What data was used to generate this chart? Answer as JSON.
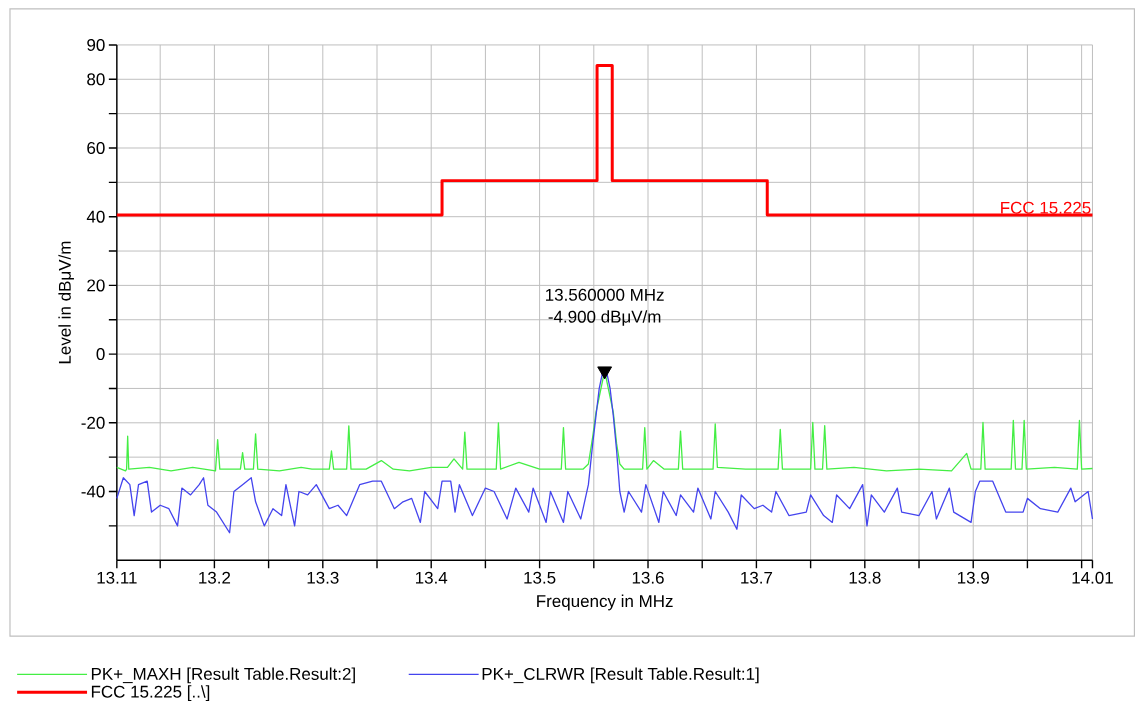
{
  "chart_data": {
    "type": "line",
    "xlabel": "Frequency in MHz",
    "ylabel": "Level in dBμV/m",
    "xlim": [
      13.11,
      14.01
    ],
    "ylim": [
      -60,
      90
    ],
    "xticks": [
      13.11,
      {
        "value": 13.15,
        "label": null
      },
      13.2,
      {
        "value": 13.25,
        "label": null
      },
      13.3,
      {
        "value": 13.35,
        "label": null
      },
      13.4,
      {
        "value": 13.45,
        "label": null
      },
      13.5,
      {
        "value": 13.55,
        "label": null
      },
      13.6,
      {
        "value": 13.65,
        "label": null
      },
      13.7,
      {
        "value": 13.75,
        "label": null
      },
      13.8,
      {
        "value": 13.85,
        "label": null
      },
      13.9,
      {
        "value": 13.95,
        "label": null
      },
      {
        "value": 14.0,
        "label": null
      },
      14.01
    ],
    "yticks": [
      {
        "value": -50,
        "label": null
      },
      -40,
      {
        "value": -30,
        "label": null
      },
      -20,
      {
        "value": -10,
        "label": null
      },
      0,
      {
        "value": 10,
        "label": null
      },
      20,
      {
        "value": 30,
        "label": null
      },
      40,
      {
        "value": 50,
        "label": null
      },
      60,
      {
        "value": 70,
        "label": null
      },
      80,
      90
    ],
    "grid": true,
    "legend": "bottom",
    "marker": "none",
    "line_style": "solid",
    "annotations": [
      "13.560000 MHz",
      "-4.900 dBμV/m",
      {
        "text": "FCC 15.225",
        "x": 14.01,
        "y": 40.5
      }
    ],
    "series": [
      {
        "name": "PK+_MAXH   [Result Table.Result:2]",
        "color": "#44ee44",
        "x": [
          13.11,
          13.118,
          13.119,
          13.12,
          13.121,
          13.14,
          13.16,
          13.18,
          13.201,
          13.203,
          13.205,
          13.224,
          13.226,
          13.228,
          13.236,
          13.238,
          13.24,
          13.26,
          13.28,
          13.29,
          13.306,
          13.308,
          13.31,
          13.322,
          13.324,
          13.326,
          13.34,
          13.354,
          13.365,
          13.38,
          13.4,
          13.415,
          13.421,
          13.429,
          13.431,
          13.433,
          13.45,
          13.46,
          13.462,
          13.464,
          13.481,
          13.5,
          13.52,
          13.522,
          13.524,
          13.54,
          13.545,
          13.549,
          13.552,
          13.555,
          13.558,
          13.56,
          13.562,
          13.565,
          13.568,
          13.571,
          13.574,
          13.578,
          13.595,
          13.597,
          13.599,
          13.605,
          13.615,
          13.628,
          13.63,
          13.632,
          13.66,
          13.662,
          13.664,
          13.69,
          13.72,
          13.722,
          13.724,
          13.75,
          13.752,
          13.754,
          13.761,
          13.763,
          13.765,
          13.79,
          13.82,
          13.85,
          13.88,
          13.894,
          13.898,
          13.907,
          13.909,
          13.911,
          13.935,
          13.937,
          13.939,
          13.945,
          13.947,
          13.949,
          13.975,
          13.996,
          13.998,
          14.0,
          14.01
        ],
        "values": [
          -33,
          -34,
          -33.5,
          -23.9,
          -33.5,
          -33,
          -34,
          -33,
          -34,
          -24.9,
          -33.5,
          -33.5,
          -28.7,
          -33.5,
          -33.5,
          -23.2,
          -33.5,
          -34,
          -33,
          -33.5,
          -33.5,
          -28.2,
          -33.5,
          -33.5,
          -20.9,
          -33.5,
          -33.5,
          -31,
          -33.5,
          -34,
          -33,
          -33,
          -30.5,
          -33.5,
          -22.7,
          -33.5,
          -33.5,
          -33.5,
          -20,
          -33.5,
          -31.5,
          -33.5,
          -33.5,
          -21.4,
          -33.5,
          -33.5,
          -32,
          -24,
          -17,
          null,
          null,
          -4.9,
          null,
          null,
          -17,
          -26,
          -32,
          -33.5,
          -33.5,
          -21.4,
          -33.5,
          -31,
          -33.5,
          -33.5,
          -22.4,
          -33.5,
          -33.5,
          -20.3,
          -33,
          -33.5,
          -33.5,
          -21.9,
          -33.5,
          -33.5,
          -19.9,
          -33.5,
          -33.5,
          -20.8,
          -33.5,
          -33,
          -34,
          -33.5,
          -34,
          -28.9,
          -33.5,
          -33.5,
          -19.9,
          -33.5,
          -33.5,
          -19.3,
          -33.5,
          -33.5,
          -19.3,
          -33.5,
          -33,
          -33.5,
          -19.3,
          -33.5,
          -33.3
        ]
      },
      {
        "name": "PK+_CLRWR   [Result Table.Result:1]",
        "color": "#4444ee",
        "x": [
          13.11,
          13.116,
          13.122,
          13.126,
          13.13,
          13.138,
          13.142,
          13.15,
          13.158,
          13.166,
          13.17,
          13.178,
          13.186,
          13.19,
          13.194,
          13.202,
          13.214,
          13.218,
          13.226,
          13.234,
          13.238,
          13.246,
          13.254,
          13.262,
          13.266,
          13.274,
          13.278,
          13.286,
          13.294,
          13.306,
          13.314,
          13.322,
          13.334,
          13.346,
          13.354,
          13.366,
          13.374,
          13.382,
          13.39,
          13.394,
          13.406,
          13.41,
          13.418,
          13.422,
          13.426,
          13.438,
          13.45,
          13.458,
          13.47,
          13.478,
          13.49,
          13.494,
          13.506,
          13.51,
          13.522,
          13.526,
          13.538,
          13.545,
          13.549,
          13.552,
          13.555,
          13.558,
          13.56,
          13.562,
          13.565,
          13.568,
          13.571,
          13.574,
          13.578,
          13.582,
          13.594,
          13.598,
          13.61,
          13.614,
          13.626,
          13.63,
          13.642,
          13.646,
          13.658,
          13.662,
          13.674,
          13.682,
          13.686,
          13.698,
          13.706,
          13.714,
          13.718,
          13.73,
          13.746,
          13.75,
          13.762,
          13.77,
          13.774,
          13.786,
          13.798,
          13.802,
          13.806,
          13.818,
          13.83,
          13.834,
          13.85,
          13.862,
          13.866,
          13.878,
          13.882,
          13.898,
          13.902,
          13.906,
          13.918,
          13.93,
          13.946,
          13.95,
          13.962,
          13.978,
          13.99,
          13.994,
          14.006,
          14.01
        ],
        "values": [
          -42,
          -36,
          -38,
          -47,
          -38,
          -37,
          -46,
          -44,
          -45,
          -50,
          -39,
          -41,
          -38,
          -36,
          -44,
          -46,
          -52,
          -40,
          -38,
          -36,
          -43,
          -50,
          -45,
          -47,
          -38,
          -50,
          -40,
          -41,
          -38,
          -45,
          -44,
          -47,
          -38,
          -37,
          -37,
          -45,
          -43,
          -42,
          -49,
          -40,
          -45,
          -37,
          -37,
          -46,
          -38,
          -47,
          -39,
          -40,
          -48,
          -39,
          -46,
          -39,
          -49,
          -40,
          -49,
          -40,
          -48,
          -38,
          -26,
          -18,
          -10,
          -5.5,
          -4.9,
          -5.5,
          -10,
          -18,
          -28,
          -40,
          -46,
          -40,
          -46,
          -38,
          -49,
          -40,
          -47,
          -41,
          -46,
          -39,
          -48,
          -40,
          -46,
          -51,
          -41,
          -45,
          -44,
          -46,
          -40,
          -47,
          -46,
          -41,
          -47,
          -49,
          -41,
          -45,
          -38,
          -50,
          -41,
          -46,
          -39,
          -46,
          -47,
          -40,
          -48,
          -39,
          -46,
          -49,
          -40,
          -37,
          -37,
          -46,
          -46,
          -42,
          -45,
          -46,
          -39,
          -43,
          -40,
          -48
        ]
      },
      {
        "name": "FCC 15.225   [..\\]",
        "color": "#ff0000",
        "type": "step",
        "x": [
          13.11,
          13.41,
          13.553,
          13.567,
          13.71,
          14.01
        ],
        "values": [
          40.5,
          50.5,
          84,
          50.5,
          40.5,
          40.5
        ]
      },
      {
        "color": "#000000",
        "type": "scatter",
        "marker": "triangle",
        "x": [
          13.56
        ],
        "values": [
          -4.9
        ]
      }
    ]
  }
}
